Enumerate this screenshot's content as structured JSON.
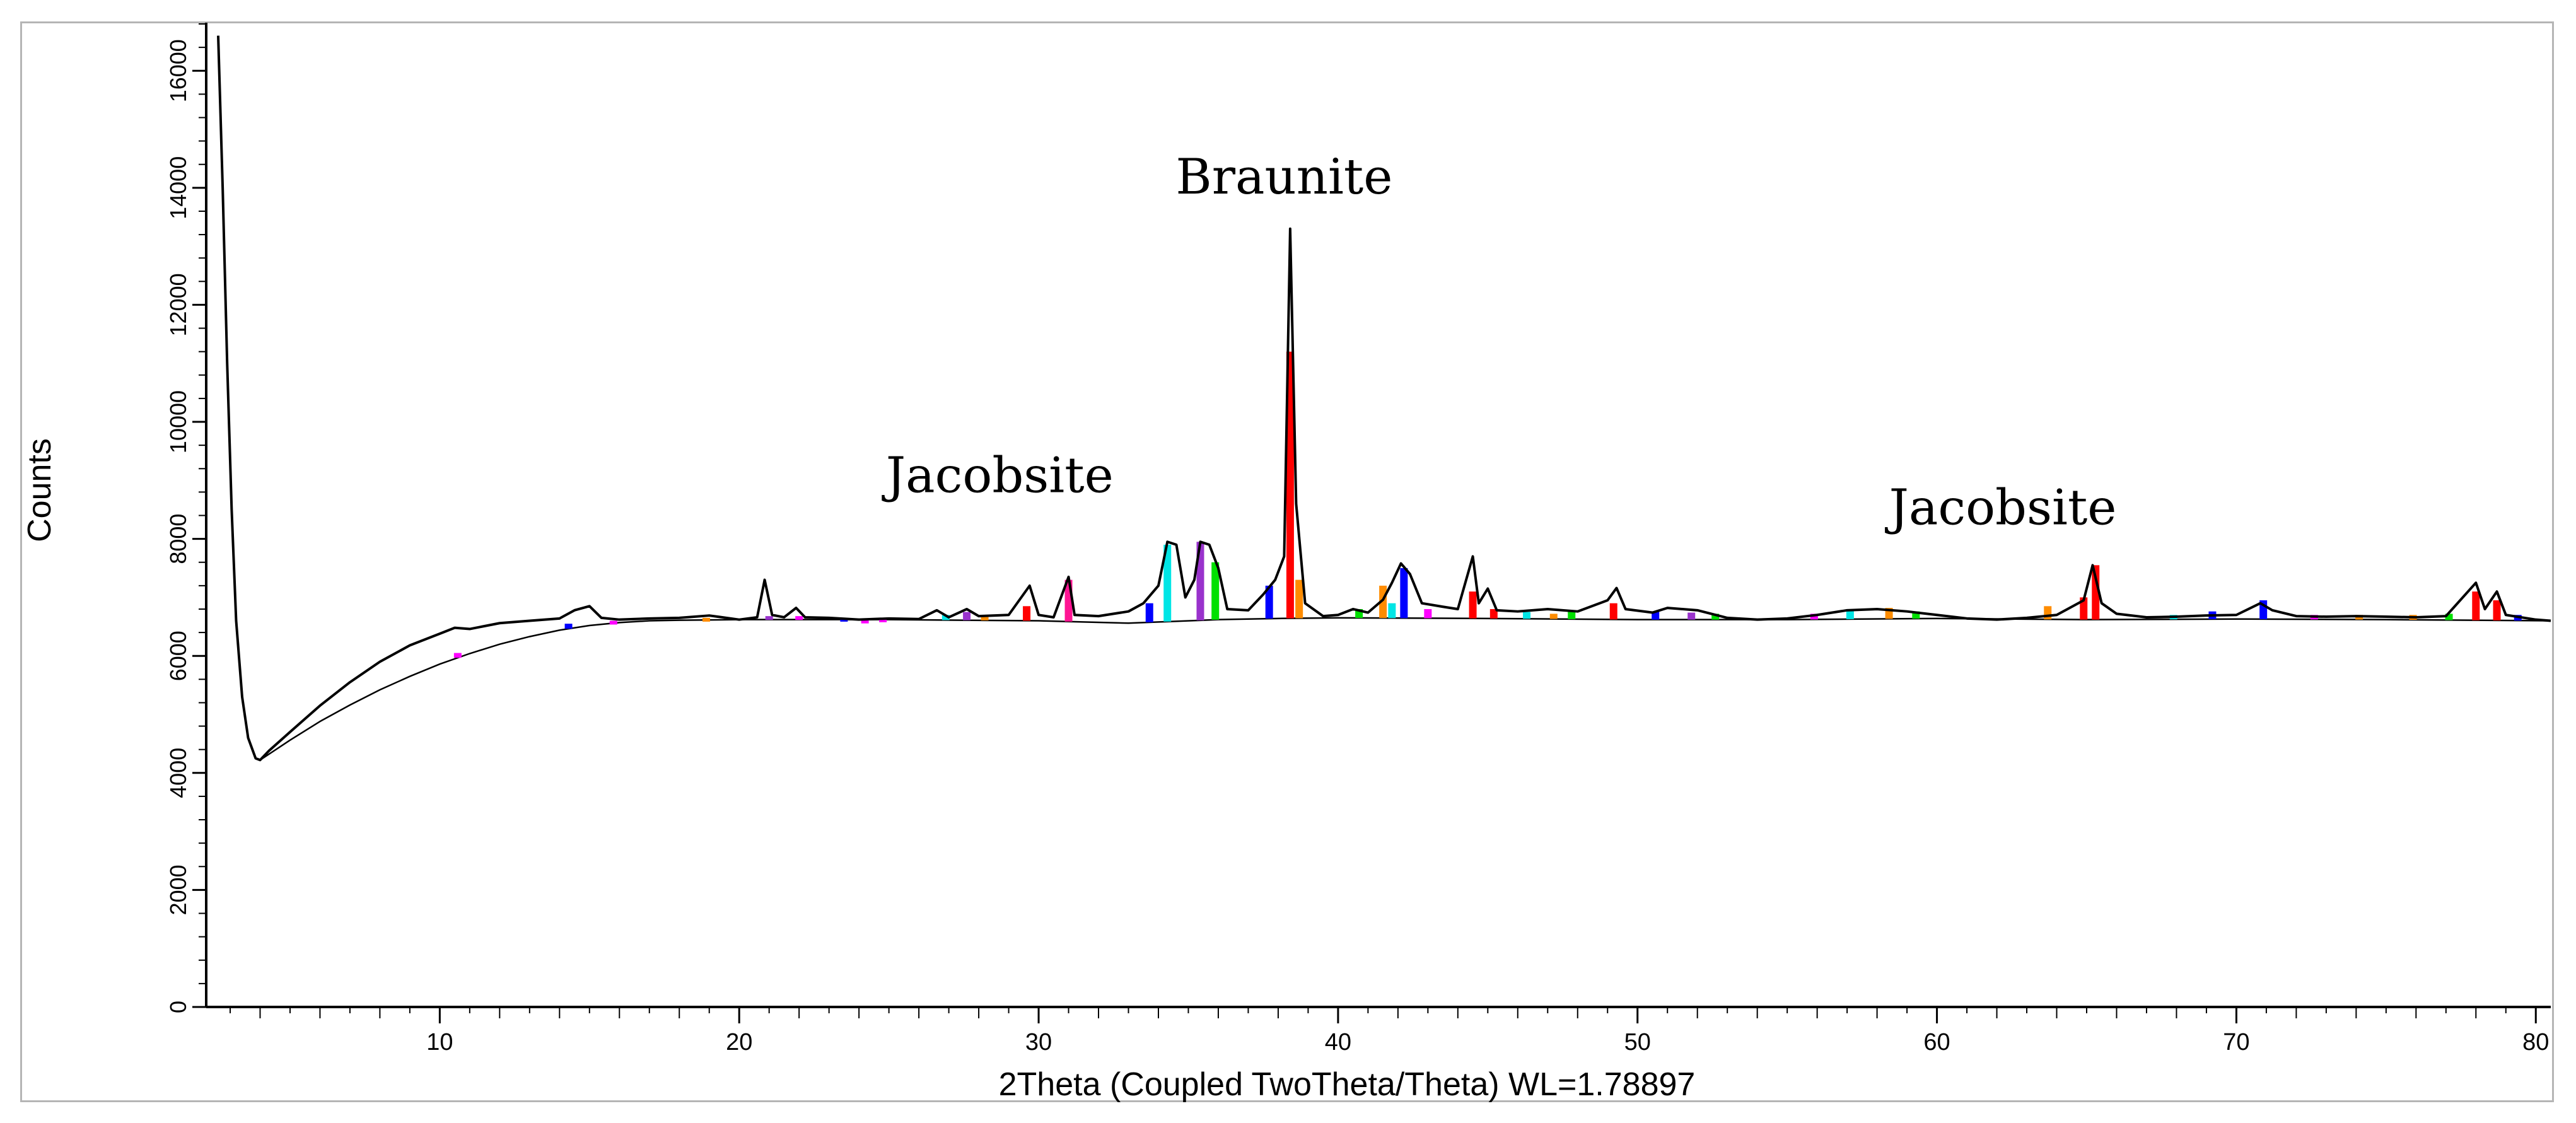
{
  "chart_data": {
    "type": "line",
    "title": "",
    "xlabel": "2Theta (Coupled TwoTheta/Theta) WL=1.78897",
    "ylabel": "Counts",
    "xlim": [
      2.2,
      80.5
    ],
    "ylim": [
      0,
      16800
    ],
    "x_ticks": [
      10,
      20,
      30,
      40,
      50,
      60,
      70,
      80
    ],
    "y_ticks": [
      0,
      2000,
      4000,
      6000,
      8000,
      10000,
      12000,
      14000,
      16000
    ],
    "grid": false,
    "legend": "none",
    "colors": {
      "pattern": "#000000",
      "background_curve": "#000000",
      "phase_palette": [
        "#ff0000",
        "#0000ff",
        "#00e000",
        "#ff00ff",
        "#00e5e5",
        "#ff8c00",
        "#9932cc",
        "#ff1493"
      ]
    },
    "series": [
      {
        "name": "pattern",
        "points": [
          [
            2.6,
            16600
          ],
          [
            2.75,
            14000
          ],
          [
            2.9,
            11000
          ],
          [
            3.05,
            8500
          ],
          [
            3.2,
            6600
          ],
          [
            3.4,
            5300
          ],
          [
            3.6,
            4600
          ],
          [
            3.85,
            4250
          ],
          [
            4.0,
            4220
          ],
          [
            4.3,
            4380
          ],
          [
            5.0,
            4700
          ],
          [
            6.0,
            5150
          ],
          [
            7.0,
            5550
          ],
          [
            8.0,
            5900
          ],
          [
            9.0,
            6180
          ],
          [
            10.0,
            6380
          ],
          [
            10.5,
            6480
          ],
          [
            11.0,
            6460
          ],
          [
            12.0,
            6560
          ],
          [
            13.0,
            6600
          ],
          [
            14.0,
            6640
          ],
          [
            14.5,
            6780
          ],
          [
            15.0,
            6850
          ],
          [
            15.4,
            6650
          ],
          [
            16.0,
            6620
          ],
          [
            17.0,
            6640
          ],
          [
            18.0,
            6650
          ],
          [
            19.0,
            6690
          ],
          [
            20.0,
            6620
          ],
          [
            20.6,
            6660
          ],
          [
            20.85,
            7300
          ],
          [
            21.1,
            6700
          ],
          [
            21.5,
            6660
          ],
          [
            21.9,
            6820
          ],
          [
            22.2,
            6660
          ],
          [
            23.0,
            6650
          ],
          [
            24.0,
            6620
          ],
          [
            25.0,
            6640
          ],
          [
            26.0,
            6630
          ],
          [
            26.6,
            6780
          ],
          [
            27.0,
            6660
          ],
          [
            27.6,
            6800
          ],
          [
            28.0,
            6680
          ],
          [
            29.0,
            6700
          ],
          [
            29.7,
            7200
          ],
          [
            30.0,
            6700
          ],
          [
            30.5,
            6660
          ],
          [
            31.0,
            7350
          ],
          [
            31.2,
            6700
          ],
          [
            32.0,
            6680
          ],
          [
            33.0,
            6760
          ],
          [
            33.5,
            6900
          ],
          [
            34.0,
            7200
          ],
          [
            34.3,
            7950
          ],
          [
            34.6,
            7900
          ],
          [
            34.9,
            7000
          ],
          [
            35.2,
            7300
          ],
          [
            35.4,
            7950
          ],
          [
            35.7,
            7900
          ],
          [
            36.0,
            7500
          ],
          [
            36.3,
            6800
          ],
          [
            37.0,
            6780
          ],
          [
            37.5,
            7050
          ],
          [
            37.9,
            7300
          ],
          [
            38.2,
            7700
          ],
          [
            38.4,
            13300
          ],
          [
            38.6,
            8600
          ],
          [
            38.9,
            6900
          ],
          [
            39.5,
            6680
          ],
          [
            40.0,
            6700
          ],
          [
            40.5,
            6800
          ],
          [
            41.0,
            6740
          ],
          [
            41.5,
            6960
          ],
          [
            41.8,
            7250
          ],
          [
            42.1,
            7580
          ],
          [
            42.4,
            7400
          ],
          [
            42.8,
            6900
          ],
          [
            43.5,
            6840
          ],
          [
            44.0,
            6800
          ],
          [
            44.5,
            7700
          ],
          [
            44.7,
            6900
          ],
          [
            45.0,
            7150
          ],
          [
            45.3,
            6780
          ],
          [
            46.0,
            6760
          ],
          [
            47.0,
            6800
          ],
          [
            48.0,
            6760
          ],
          [
            49.0,
            6950
          ],
          [
            49.3,
            7160
          ],
          [
            49.6,
            6800
          ],
          [
            50.5,
            6740
          ],
          [
            51.0,
            6820
          ],
          [
            52.0,
            6780
          ],
          [
            53.0,
            6650
          ],
          [
            54.0,
            6620
          ],
          [
            55.0,
            6640
          ],
          [
            56.0,
            6700
          ],
          [
            57.0,
            6780
          ],
          [
            58.0,
            6800
          ],
          [
            59.0,
            6760
          ],
          [
            60.0,
            6700
          ],
          [
            61.0,
            6640
          ],
          [
            62.0,
            6620
          ],
          [
            63.0,
            6650
          ],
          [
            64.0,
            6700
          ],
          [
            64.9,
            6950
          ],
          [
            65.2,
            7550
          ],
          [
            65.5,
            6900
          ],
          [
            66.0,
            6720
          ],
          [
            67.0,
            6660
          ],
          [
            68.0,
            6670
          ],
          [
            69.0,
            6690
          ],
          [
            70.0,
            6700
          ],
          [
            70.8,
            6900
          ],
          [
            71.2,
            6780
          ],
          [
            72.0,
            6680
          ],
          [
            73.0,
            6670
          ],
          [
            74.0,
            6680
          ],
          [
            75.0,
            6670
          ],
          [
            76.0,
            6660
          ],
          [
            77.0,
            6680
          ],
          [
            78.0,
            7250
          ],
          [
            78.3,
            6800
          ],
          [
            78.7,
            7100
          ],
          [
            79.0,
            6700
          ],
          [
            80.0,
            6620
          ],
          [
            80.5,
            6600
          ]
        ]
      },
      {
        "name": "background",
        "points": [
          [
            4.0,
            4220
          ],
          [
            5.0,
            4560
          ],
          [
            6.0,
            4880
          ],
          [
            7.0,
            5160
          ],
          [
            8.0,
            5420
          ],
          [
            9.0,
            5650
          ],
          [
            10.0,
            5860
          ],
          [
            11.0,
            6040
          ],
          [
            12.0,
            6200
          ],
          [
            13.0,
            6330
          ],
          [
            14.0,
            6440
          ],
          [
            15.0,
            6520
          ],
          [
            16.0,
            6570
          ],
          [
            17.0,
            6600
          ],
          [
            18.0,
            6610
          ],
          [
            20.0,
            6620
          ],
          [
            25.0,
            6620
          ],
          [
            30.0,
            6600
          ],
          [
            33.0,
            6560
          ],
          [
            36.0,
            6620
          ],
          [
            38.0,
            6640
          ],
          [
            40.0,
            6650
          ],
          [
            45.0,
            6640
          ],
          [
            50.0,
            6620
          ],
          [
            55.0,
            6620
          ],
          [
            60.0,
            6640
          ],
          [
            65.0,
            6620
          ],
          [
            70.0,
            6630
          ],
          [
            75.0,
            6620
          ],
          [
            80.5,
            6600
          ]
        ]
      }
    ],
    "phase_sticks": [
      {
        "x": 10.6,
        "y": 6050,
        "color": "#ff00ff"
      },
      {
        "x": 14.3,
        "y": 6550,
        "color": "#0000ff"
      },
      {
        "x": 15.8,
        "y": 6600,
        "color": "#ff00ff"
      },
      {
        "x": 18.9,
        "y": 6650,
        "color": "#ff8c00"
      },
      {
        "x": 21.0,
        "y": 6680,
        "color": "#9932cc"
      },
      {
        "x": 22.0,
        "y": 6680,
        "color": "#ff00ff"
      },
      {
        "x": 23.5,
        "y": 6650,
        "color": "#0000ff"
      },
      {
        "x": 24.2,
        "y": 6620,
        "color": "#ff00ff"
      },
      {
        "x": 24.8,
        "y": 6640,
        "color": "#ff00ff"
      },
      {
        "x": 26.9,
        "y": 6700,
        "color": "#00e5e5"
      },
      {
        "x": 27.6,
        "y": 6750,
        "color": "#9932cc"
      },
      {
        "x": 28.2,
        "y": 6700,
        "color": "#ff8c00"
      },
      {
        "x": 29.6,
        "y": 6850,
        "color": "#ff0000"
      },
      {
        "x": 31.0,
        "y": 7300,
        "color": "#ff1493"
      },
      {
        "x": 33.7,
        "y": 6900,
        "color": "#0000ff"
      },
      {
        "x": 34.3,
        "y": 7900,
        "color": "#00e5e5"
      },
      {
        "x": 35.4,
        "y": 7950,
        "color": "#9932cc"
      },
      {
        "x": 35.9,
        "y": 7600,
        "color": "#00e000"
      },
      {
        "x": 37.7,
        "y": 7200,
        "color": "#0000ff"
      },
      {
        "x": 38.4,
        "y": 11200,
        "color": "#ff0000"
      },
      {
        "x": 38.7,
        "y": 7300,
        "color": "#ff8c00"
      },
      {
        "x": 40.7,
        "y": 6800,
        "color": "#00e000"
      },
      {
        "x": 41.5,
        "y": 7200,
        "color": "#ff8c00"
      },
      {
        "x": 41.8,
        "y": 6900,
        "color": "#00e5e5"
      },
      {
        "x": 42.2,
        "y": 7500,
        "color": "#0000ff"
      },
      {
        "x": 43.0,
        "y": 6800,
        "color": "#ff00ff"
      },
      {
        "x": 44.5,
        "y": 7100,
        "color": "#ff0000"
      },
      {
        "x": 45.2,
        "y": 6800,
        "color": "#ff0000"
      },
      {
        "x": 46.3,
        "y": 6750,
        "color": "#00e5e5"
      },
      {
        "x": 47.2,
        "y": 6720,
        "color": "#ff8c00"
      },
      {
        "x": 47.8,
        "y": 6760,
        "color": "#00e000"
      },
      {
        "x": 49.2,
        "y": 6900,
        "color": "#ff0000"
      },
      {
        "x": 50.6,
        "y": 6760,
        "color": "#0000ff"
      },
      {
        "x": 51.8,
        "y": 6740,
        "color": "#9932cc"
      },
      {
        "x": 52.6,
        "y": 6720,
        "color": "#00e000"
      },
      {
        "x": 55.9,
        "y": 6720,
        "color": "#ff00ff"
      },
      {
        "x": 57.1,
        "y": 6800,
        "color": "#00e5e5"
      },
      {
        "x": 58.4,
        "y": 6820,
        "color": "#ff8c00"
      },
      {
        "x": 59.3,
        "y": 6760,
        "color": "#00e000"
      },
      {
        "x": 63.7,
        "y": 6850,
        "color": "#ff8c00"
      },
      {
        "x": 64.9,
        "y": 7000,
        "color": "#ff0000"
      },
      {
        "x": 65.3,
        "y": 7550,
        "color": "#ff0000"
      },
      {
        "x": 67.9,
        "y": 6700,
        "color": "#00e5e5"
      },
      {
        "x": 69.2,
        "y": 6760,
        "color": "#0000ff"
      },
      {
        "x": 70.9,
        "y": 6950,
        "color": "#0000ff"
      },
      {
        "x": 72.6,
        "y": 6700,
        "color": "#ff00ff"
      },
      {
        "x": 74.1,
        "y": 6700,
        "color": "#ff8c00"
      },
      {
        "x": 75.9,
        "y": 6700,
        "color": "#ff8c00"
      },
      {
        "x": 77.1,
        "y": 6720,
        "color": "#00e000"
      },
      {
        "x": 78.0,
        "y": 7100,
        "color": "#ff0000"
      },
      {
        "x": 78.7,
        "y": 6950,
        "color": "#ff0000"
      },
      {
        "x": 79.4,
        "y": 6700,
        "color": "#0000ff"
      }
    ],
    "annotations": [
      {
        "text": "Braunite",
        "x": 38.2,
        "y": 13900
      },
      {
        "text": "Jacobsite",
        "x": 28.7,
        "y": 8800
      },
      {
        "text": "Jacobsite",
        "x": 62.2,
        "y": 8250
      }
    ]
  }
}
